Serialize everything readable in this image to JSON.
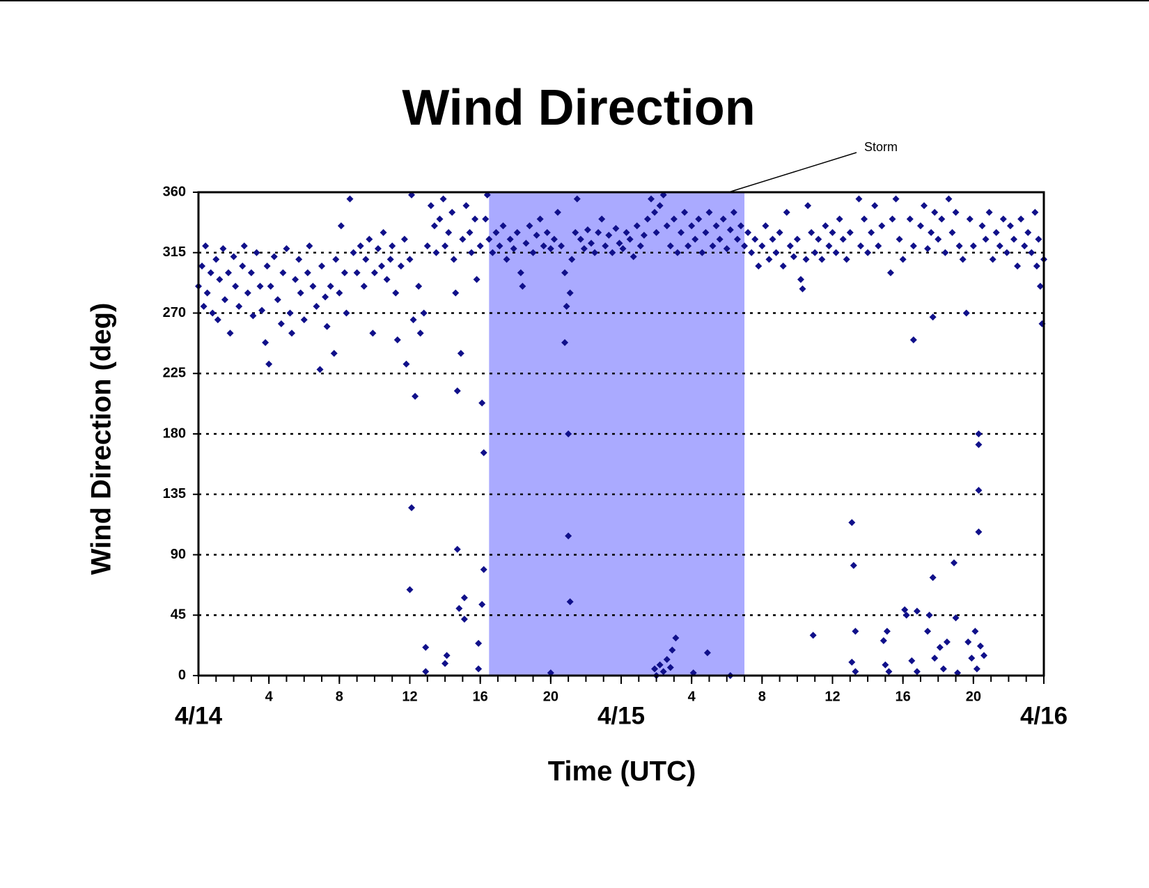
{
  "chart_data": {
    "type": "scatter",
    "title": "Wind Direction",
    "x_label": "Time (UTC)",
    "y_label": "Wind Direction (deg)",
    "color": "#10108a",
    "span": {
      "xlim": [
        16.5,
        31
      ],
      "color": "#aaaaff"
    },
    "annotation": {
      "text": "Storm",
      "x": 30.1,
      "y": 360
    },
    "xlim": [
      0,
      48
    ],
    "ylim": [
      0,
      360
    ],
    "yticks": [
      0,
      45,
      90,
      135,
      180,
      225,
      270,
      315,
      360
    ],
    "grid": true,
    "xticks": [
      {
        "value": 0,
        "label": "4/14"
      },
      4,
      8,
      12,
      16,
      20,
      {
        "value": 24,
        "label": "4/15"
      },
      {
        "value": 28,
        "label": "4"
      },
      {
        "value": 32,
        "label": "8"
      },
      {
        "value": 36,
        "label": "12"
      },
      {
        "value": 40,
        "label": "16"
      },
      {
        "value": 44,
        "label": "20"
      },
      {
        "value": 48,
        "label": "4/16"
      }
    ],
    "xminorticks": [
      0,
      1,
      2,
      3,
      4,
      5,
      6,
      7,
      8,
      9,
      10,
      11,
      12,
      13,
      14,
      15,
      16,
      17,
      18,
      19,
      20,
      21,
      22,
      23,
      24,
      25,
      26,
      27,
      28,
      29,
      30,
      31,
      32,
      33,
      34,
      35,
      36,
      37,
      38,
      39,
      40,
      41,
      42,
      43,
      44,
      45,
      46,
      47,
      48
    ],
    "x": [
      0.0,
      0.2,
      0.3,
      0.4,
      0.5,
      0.7,
      0.8,
      1.0,
      1.1,
      1.2,
      1.4,
      1.5,
      1.7,
      1.8,
      2.0,
      2.1,
      2.3,
      2.5,
      2.6,
      2.8,
      3.0,
      3.1,
      3.3,
      3.5,
      3.6,
      3.8,
      3.9,
      4.0,
      4.1,
      4.3,
      4.5,
      4.7,
      4.8,
      5.0,
      5.2,
      5.3,
      5.5,
      5.7,
      5.8,
      6.0,
      6.2,
      6.3,
      6.5,
      6.7,
      6.9,
      7.0,
      7.2,
      7.3,
      7.5,
      7.7,
      7.8,
      8.0,
      8.1,
      8.3,
      8.4,
      8.6,
      8.8,
      9.0,
      9.2,
      9.4,
      9.5,
      9.7,
      9.9,
      10.0,
      10.2,
      10.4,
      10.5,
      10.7,
      10.9,
      11.0,
      11.2,
      11.3,
      11.5,
      11.7,
      11.8,
      12.0,
      12.1,
      12.2,
      12.3,
      12.5,
      12.6,
      12.8,
      12.1,
      12.0,
      12.9,
      12.9,
      13.0,
      13.2,
      13.4,
      13.5,
      13.7,
      13.9,
      14.0,
      14.1,
      14.0,
      14.2,
      14.4,
      14.5,
      14.6,
      14.7,
      14.7,
      14.8,
      14.9,
      15.0,
      15.1,
      15.1,
      15.2,
      15.4,
      15.5,
      15.7,
      15.8,
      15.9,
      15.9,
      16.0,
      16.1,
      16.2,
      16.2,
      16.1,
      16.3,
      16.4,
      16.5,
      16.7,
      16.9,
      17.1,
      17.3,
      17.5,
      17.7,
      17.9,
      18.1,
      18.3,
      18.4,
      18.6,
      18.8,
      19.0,
      19.2,
      19.4,
      19.6,
      19.8,
      20.0,
      20.0,
      20.2,
      20.4,
      20.6,
      20.8,
      20.8,
      20.9,
      21.0,
      21.0,
      21.1,
      21.1,
      21.2,
      21.4,
      21.5,
      21.7,
      21.9,
      22.1,
      22.3,
      22.5,
      22.7,
      22.9,
      23.1,
      23.3,
      23.5,
      23.7,
      23.9,
      24.1,
      24.3,
      24.5,
      24.7,
      24.9,
      25.1,
      25.3,
      25.5,
      25.7,
      25.9,
      26.0,
      26.2,
      26.4,
      26.6,
      26.8,
      27.0,
      27.2,
      27.4,
      27.6,
      27.8,
      28.0,
      28.2,
      28.4,
      28.6,
      28.8,
      29.0,
      29.2,
      29.4,
      29.6,
      29.8,
      30.0,
      30.2,
      30.4,
      30.6,
      30.8,
      31.0,
      25.9,
      26.0,
      26.2,
      26.4,
      26.6,
      26.8,
      26.9,
      27.1,
      28.1,
      28.9,
      30.2,
      31.2,
      31.4,
      31.6,
      31.8,
      32.0,
      32.2,
      32.4,
      32.6,
      32.8,
      33.0,
      33.2,
      33.4,
      33.6,
      33.8,
      34.0,
      34.2,
      34.3,
      34.5,
      34.6,
      34.8,
      34.9,
      35.0,
      35.2,
      35.4,
      35.6,
      35.8,
      36.0,
      36.2,
      36.4,
      36.6,
      36.8,
      37.0,
      37.1,
      37.1,
      37.2,
      37.3,
      37.3,
      37.5,
      37.6,
      37.8,
      38.0,
      38.2,
      38.4,
      38.6,
      38.8,
      38.9,
      39.0,
      39.1,
      39.2,
      39.3,
      39.4,
      39.6,
      39.8,
      40.0,
      40.1,
      40.2,
      40.4,
      40.5,
      40.6,
      40.6,
      40.8,
      40.8,
      41.0,
      41.2,
      41.4,
      41.6,
      41.7,
      41.8,
      41.5,
      41.4,
      41.7,
      41.8,
      42.0,
      42.1,
      42.2,
      42.3,
      42.4,
      42.5,
      42.6,
      42.8,
      42.9,
      43.0,
      43.0,
      43.1,
      43.2,
      43.4,
      43.6,
      43.7,
      43.8,
      43.9,
      44.0,
      44.1,
      44.2,
      44.3,
      44.3,
      44.3,
      44.3,
      44.4,
      44.6,
      44.5,
      44.7,
      44.9,
      45.1,
      45.3,
      45.5,
      45.7,
      45.9,
      46.1,
      46.3,
      46.5,
      46.7,
      46.9,
      47.1,
      47.3,
      47.5,
      47.6,
      47.7,
      47.8,
      47.9,
      48.0
    ],
    "values": [
      290,
      305,
      275,
      320,
      285,
      300,
      270,
      310,
      265,
      295,
      318,
      280,
      300,
      255,
      312,
      290,
      275,
      305,
      320,
      285,
      300,
      268,
      315,
      290,
      272,
      248,
      305,
      232,
      290,
      312,
      280,
      262,
      300,
      318,
      270,
      255,
      295,
      310,
      285,
      265,
      300,
      320,
      290,
      275,
      228,
      305,
      282,
      260,
      290,
      240,
      310,
      285,
      335,
      300,
      270,
      355,
      315,
      300,
      320,
      290,
      310,
      325,
      255,
      300,
      318,
      305,
      330,
      295,
      310,
      320,
      285,
      250,
      305,
      325,
      232,
      310,
      358,
      265,
      208,
      290,
      255,
      270,
      125,
      64,
      3,
      21,
      320,
      350,
      335,
      315,
      340,
      355,
      320,
      15,
      9,
      330,
      345,
      310,
      285,
      212,
      94,
      50,
      240,
      325,
      58,
      42,
      350,
      330,
      315,
      340,
      295,
      24,
      5,
      320,
      203,
      166,
      79,
      53,
      340,
      358,
      325,
      315,
      330,
      320,
      335,
      310,
      325,
      318,
      330,
      300,
      290,
      322,
      335,
      315,
      328,
      340,
      320,
      330,
      318,
      2,
      325,
      345,
      320,
      300,
      248,
      275,
      180,
      104,
      55,
      285,
      310,
      330,
      355,
      325,
      318,
      332,
      322,
      315,
      330,
      340,
      320,
      328,
      315,
      333,
      322,
      318,
      330,
      325,
      312,
      335,
      320,
      328,
      340,
      355,
      345,
      330,
      350,
      358,
      335,
      320,
      340,
      315,
      330,
      345,
      320,
      335,
      325,
      340,
      315,
      330,
      345,
      320,
      335,
      325,
      340,
      318,
      332,
      345,
      325,
      335,
      320,
      5,
      0,
      8,
      3,
      12,
      6,
      19,
      28,
      2,
      17,
      0,
      330,
      315,
      325,
      305,
      320,
      335,
      310,
      325,
      315,
      330,
      305,
      345,
      320,
      312,
      325,
      295,
      288,
      310,
      350,
      330,
      30,
      315,
      325,
      310,
      335,
      320,
      330,
      315,
      340,
      325,
      310,
      330,
      10,
      114,
      82,
      33,
      3,
      355,
      320,
      340,
      315,
      330,
      350,
      320,
      335,
      26,
      8,
      33,
      3,
      300,
      340,
      355,
      325,
      310,
      49,
      45,
      340,
      11,
      250,
      320,
      3,
      48,
      335,
      350,
      318,
      330,
      267,
      345,
      45,
      33,
      73,
      13,
      325,
      21,
      340,
      5,
      315,
      25,
      355,
      330,
      84,
      345,
      43,
      2,
      320,
      310,
      270,
      25,
      340,
      13,
      320,
      33,
      5,
      180,
      172,
      138,
      107,
      22,
      15,
      335,
      325,
      345,
      310,
      330,
      320,
      340,
      315,
      335,
      325,
      305,
      340,
      320,
      330,
      315,
      345,
      305,
      325,
      290,
      262,
      310
    ]
  }
}
